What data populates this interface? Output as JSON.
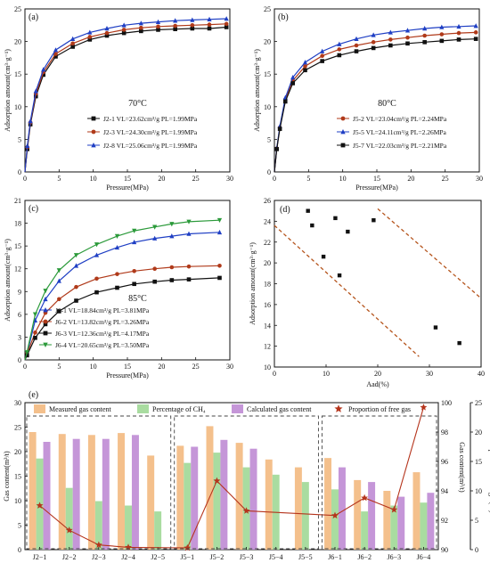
{
  "chart_data": [
    {
      "id": "a",
      "panel_label": "(a)",
      "type": "line",
      "temperature": "70°C",
      "xlabel": "Pressure(MPa)",
      "ylabel": "Adsorption amount(cm³·g⁻¹)",
      "xlim": [
        0,
        30
      ],
      "ylim": [
        0,
        25
      ],
      "xticks": [
        0,
        5,
        10,
        15,
        20,
        25,
        30
      ],
      "yticks": [
        0,
        5,
        10,
        15,
        20,
        25
      ],
      "legend_position": "bottom-right",
      "series": [
        {
          "name": "J2-1 VL=23.62cm³/g PL=1.99MPa",
          "marker": "square",
          "color": "#111111",
          "line_color": "#111111",
          "x": [
            0.35,
            0.8,
            1.6,
            2.7,
            4.5,
            7.0,
            9.5,
            12.0,
            14.5,
            17.0,
            19.5,
            22.0,
            24.5,
            27.0,
            29.5
          ],
          "y": [
            3.5,
            7.3,
            11.6,
            14.9,
            17.7,
            19.2,
            20.3,
            20.9,
            21.3,
            21.6,
            21.8,
            21.9,
            22.0,
            22.0,
            22.2
          ]
        },
        {
          "name": "J2-3 VL=24.30cm³/g PL=1.99MPa",
          "marker": "circle",
          "color": "#b03a1a",
          "line_color": "#b03a1a",
          "x": [
            0.35,
            0.8,
            1.6,
            2.7,
            4.5,
            7.0,
            9.5,
            12.0,
            14.5,
            17.0,
            19.5,
            22.0,
            24.5,
            27.0,
            29.5
          ],
          "y": [
            3.8,
            7.6,
            12.0,
            15.3,
            18.1,
            19.7,
            20.7,
            21.3,
            21.8,
            22.1,
            22.3,
            22.4,
            22.5,
            22.6,
            22.7
          ]
        },
        {
          "name": "J2-8 VL=25.06cm³/g PL=1.99MPa",
          "marker": "triangle",
          "color": "#1f3fc4",
          "line_color": "#1f3fc4",
          "x": [
            0.35,
            0.8,
            1.6,
            2.7,
            4.5,
            7.0,
            9.5,
            12.0,
            14.5,
            17.0,
            19.5,
            22.0,
            24.5,
            27.0,
            29.5
          ],
          "y": [
            4.0,
            7.8,
            12.4,
            15.7,
            18.7,
            20.4,
            21.4,
            22.0,
            22.5,
            22.8,
            23.0,
            23.2,
            23.3,
            23.4,
            23.5
          ]
        }
      ]
    },
    {
      "id": "b",
      "panel_label": "(b)",
      "type": "line",
      "temperature": "80°C",
      "xlabel": "Pressure(MPa)",
      "ylabel": "Adsorption amount(cm³·g⁻¹)",
      "xlim": [
        0,
        30
      ],
      "ylim": [
        0,
        25
      ],
      "xticks": [
        0,
        5,
        10,
        15,
        20,
        25,
        30
      ],
      "yticks": [
        0,
        5,
        10,
        15,
        20,
        25
      ],
      "legend_position": "bottom-right",
      "series": [
        {
          "name": "J5-2 VL=23.04cm³/g PL=2.24MPa",
          "marker": "circle",
          "color": "#b03a1a",
          "line_color": "#b03a1a",
          "x": [
            0.35,
            0.8,
            1.6,
            2.7,
            4.5,
            7.0,
            9.5,
            12.0,
            14.5,
            17.0,
            19.5,
            22.0,
            24.5,
            27.0,
            29.5
          ],
          "y": [
            3.6,
            6.8,
            11.1,
            14.0,
            16.2,
            17.8,
            18.8,
            19.4,
            19.9,
            20.3,
            20.6,
            20.9,
            21.1,
            21.3,
            21.4
          ]
        },
        {
          "name": "J5-5 VL=24.11cm³/g PL=2.26MPa",
          "marker": "triangle",
          "color": "#1f3fc4",
          "line_color": "#1f3fc4",
          "x": [
            0.35,
            0.8,
            1.6,
            2.7,
            4.5,
            7.0,
            9.5,
            12.0,
            14.5,
            17.0,
            19.5,
            22.0,
            24.5,
            27.0,
            29.5
          ],
          "y": [
            3.7,
            7.0,
            11.4,
            14.5,
            16.8,
            18.5,
            19.6,
            20.4,
            21.0,
            21.4,
            21.7,
            22.0,
            22.2,
            22.3,
            22.4
          ]
        },
        {
          "name": "J5-7 VL=22.03cm³/g PL=2.21MPa",
          "marker": "square",
          "color": "#111111",
          "line_color": "#111111",
          "x": [
            0.35,
            0.8,
            1.6,
            2.7,
            4.5,
            7.0,
            9.5,
            12.0,
            14.5,
            17.0,
            19.5,
            22.0,
            24.5,
            27.0,
            29.5
          ],
          "y": [
            3.5,
            6.6,
            10.8,
            13.6,
            15.6,
            17.0,
            17.9,
            18.5,
            19.0,
            19.4,
            19.7,
            19.9,
            20.1,
            20.3,
            20.4
          ]
        }
      ]
    },
    {
      "id": "c",
      "panel_label": "(c)",
      "type": "line",
      "temperature": "85°C",
      "xlabel": "Pressure(MPa)",
      "ylabel": "Adsorption amount(cm³·g⁻¹)",
      "xlim": [
        0,
        30
      ],
      "ylim": [
        0,
        21
      ],
      "xticks": [
        0,
        5,
        10,
        15,
        20,
        25,
        30
      ],
      "yticks": [
        0,
        3,
        6,
        9,
        12,
        15,
        18,
        21
      ],
      "legend_position": "bottom-right",
      "series": [
        {
          "name": "J6-1 VL=18.84cm³/g PL=3.81MPa",
          "marker": "triangle",
          "color": "#1f3fc4",
          "line_color": "#1f3fc4",
          "x": [
            0.3,
            1.5,
            3.0,
            5.0,
            7.5,
            10.5,
            13.5,
            16.0,
            19.0,
            21.5,
            24.0,
            28.5
          ],
          "y": [
            0.8,
            5.2,
            8.0,
            10.4,
            12.4,
            13.8,
            14.8,
            15.5,
            16.0,
            16.3,
            16.6,
            16.8
          ]
        },
        {
          "name": "J6-2 VL=13.82cm³/g PL=3.26MPa",
          "marker": "circle",
          "color": "#b03a1a",
          "line_color": "#b03a1a",
          "x": [
            0.3,
            1.5,
            3.0,
            5.0,
            7.5,
            10.5,
            13.5,
            16.0,
            19.0,
            21.5,
            24.0,
            28.5
          ],
          "y": [
            0.8,
            3.6,
            6.2,
            8.0,
            9.6,
            10.7,
            11.3,
            11.7,
            12.0,
            12.2,
            12.3,
            12.4
          ]
        },
        {
          "name": "J6-3 VL=12.36cm³/g PL=4.17MPa",
          "marker": "square",
          "color": "#111111",
          "line_color": "#111111",
          "x": [
            0.3,
            1.5,
            3.0,
            5.0,
            7.5,
            10.5,
            13.5,
            16.0,
            19.0,
            21.5,
            24.0,
            28.5
          ],
          "y": [
            0.6,
            2.9,
            4.7,
            6.4,
            7.8,
            8.9,
            9.5,
            10.0,
            10.3,
            10.5,
            10.6,
            10.8
          ]
        },
        {
          "name": "J6-4 VL=20.65cm³/g PL=3.50MPa",
          "marker": "triangle-down",
          "color": "#2b9a3a",
          "line_color": "#2b9a3a",
          "x": [
            0.3,
            1.5,
            3.0,
            5.0,
            7.5,
            10.5,
            13.5,
            16.0,
            19.0,
            21.5,
            24.0,
            28.5
          ],
          "y": [
            1.0,
            6.0,
            9.1,
            11.8,
            13.8,
            15.2,
            16.3,
            17.0,
            17.5,
            17.9,
            18.2,
            18.4
          ]
        }
      ]
    },
    {
      "id": "d",
      "panel_label": "(d)",
      "type": "scatter",
      "xlabel": "Aad(%)",
      "ylabel": "Adsorption amount(cm³·g⁻¹)",
      "xlim": [
        0,
        40
      ],
      "ylim": [
        10,
        26
      ],
      "xticks": [
        0,
        10,
        20,
        30,
        40
      ],
      "yticks": [
        10,
        12,
        14,
        16,
        18,
        20,
        22,
        24,
        26
      ],
      "points": {
        "x": [
          6.5,
          7.3,
          9.5,
          11.8,
          12.6,
          14.2,
          19.2,
          31.2,
          35.8
        ],
        "y": [
          25.0,
          23.6,
          20.6,
          24.3,
          18.8,
          23.0,
          24.1,
          13.8,
          12.3
        ]
      },
      "envelope_lines": [
        {
          "x": [
            0,
            28
          ],
          "y": [
            23.6,
            11.0
          ]
        },
        {
          "x": [
            20,
            40
          ],
          "y": [
            25.2,
            16.6
          ]
        }
      ],
      "envelope_color": "#b5541c"
    },
    {
      "id": "e",
      "panel_label": "(e)",
      "type": "bar",
      "ylabel_left": "Gas content(m³/t)",
      "ylabel_right_inner": "Gas content(m³/t)",
      "ylabel_right_outer": "Proportion of free gas(%)",
      "categories": [
        "J2−1",
        "J2−2",
        "J2−3",
        "J2−4",
        "J2−5",
        "J5−1",
        "J5−2",
        "J5−3",
        "J5−4",
        "J5−5",
        "J6−1",
        "J6−2",
        "J6−3",
        "J6−4"
      ],
      "ylim_left": [
        0,
        30
      ],
      "yticks_left": [
        0,
        5,
        10,
        15,
        20,
        25,
        30
      ],
      "ylim_right_inner": [
        90,
        100
      ],
      "yticks_right_inner": [
        90,
        92,
        94,
        96,
        98,
        100
      ],
      "ylim_right_outer": [
        0,
        25
      ],
      "yticks_right_outer": [
        0,
        5,
        10,
        15,
        20,
        25
      ],
      "series": [
        {
          "name": "Measured gas content",
          "color": "#f4c08c",
          "values": [
            24.0,
            23.6,
            23.4,
            23.8,
            19.2,
            21.2,
            25.2,
            21.8,
            18.4,
            16.8,
            18.7,
            14.2,
            12.0,
            15.8
          ]
        },
        {
          "name": "Percentage of CH₄",
          "color": "#a9dca0",
          "values": [
            96.2,
            94.2,
            93.3,
            93.0,
            92.6,
            95.9,
            96.6,
            95.6,
            95.1,
            94.6,
            94.1,
            92.6,
            93.0,
            93.2
          ]
        },
        {
          "name": "Calculated gas content",
          "color": "#c596d8",
          "values": [
            22.0,
            22.6,
            22.6,
            23.4,
            null,
            21.0,
            22.4,
            20.6,
            null,
            null,
            16.8,
            13.8,
            10.8,
            11.6
          ]
        },
        {
          "name": "Proportion of free gas",
          "color": "#b5341c",
          "marker": "star",
          "values": [
            7.5,
            3.3,
            0.8,
            0.4,
            null,
            0.3,
            11.7,
            6.6,
            null,
            null,
            5.8,
            8.8,
            6.8,
            24.2
          ]
        }
      ],
      "group_boxes": [
        [
          "J2−1",
          "J2−5"
        ],
        [
          "J5−1",
          "J5−5"
        ],
        [
          "J6−1",
          "J6−4"
        ]
      ]
    }
  ]
}
